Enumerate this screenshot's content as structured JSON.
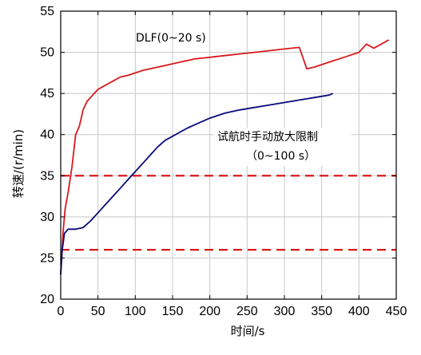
{
  "chart_data": {
    "type": "line",
    "xlabel": "时间/s",
    "ylabel": "转速/(r/min)",
    "xlim": [
      0,
      450
    ],
    "ylim": [
      20,
      55
    ],
    "xticks": [
      "0",
      "50",
      "100",
      "150",
      "200",
      "250",
      "300",
      "350",
      "400",
      "450"
    ],
    "yticks": [
      "20",
      "25",
      "30",
      "35",
      "40",
      "45",
      "50",
      "55"
    ],
    "grid": true,
    "annotations": [
      {
        "text": "DLF(0~20 s)",
        "series": "red"
      },
      {
        "text": "试航时手动放大限制",
        "series": "navy"
      },
      {
        "text": "（0~100 s）",
        "series": "navy"
      }
    ],
    "reference_lines": [
      {
        "y": 35,
        "style": "dashed",
        "color": "#d7191c"
      },
      {
        "y": 26,
        "style": "dashed",
        "color": "#d7191c"
      }
    ],
    "series": [
      {
        "color": "#d7191c",
        "x": [
          0,
          3,
          6,
          10,
          15,
          20,
          25,
          30,
          35,
          40,
          45,
          50,
          60,
          70,
          80,
          90,
          100,
          110,
          120,
          130,
          140,
          150,
          160,
          170,
          180,
          200,
          220,
          240,
          260,
          280,
          300,
          320,
          330,
          340,
          360,
          380,
          400,
          410,
          420,
          440
        ],
        "y": [
          23,
          28,
          31,
          33,
          36,
          40,
          41,
          43,
          44,
          44.5,
          45,
          45.5,
          46,
          46.5,
          47,
          47.2,
          47.5,
          47.8,
          48,
          48.2,
          48.4,
          48.6,
          48.8,
          49,
          49.2,
          49.4,
          49.6,
          49.8,
          50,
          50.2,
          50.4,
          50.6,
          48,
          48.2,
          48.8,
          49.4,
          50,
          51,
          50.5,
          51.5
        ]
      },
      {
        "color": "#0a0a7a",
        "x": [
          0,
          2,
          5,
          10,
          20,
          30,
          40,
          50,
          60,
          70,
          80,
          90,
          100,
          110,
          120,
          130,
          140,
          150,
          160,
          170,
          180,
          190,
          200,
          220,
          240,
          260,
          280,
          300,
          320,
          340,
          360,
          365
        ],
        "y": [
          23,
          26,
          28,
          28.5,
          28.5,
          28.7,
          29.5,
          30.5,
          31.5,
          32.5,
          33.5,
          34.5,
          35.5,
          36.5,
          37.5,
          38.5,
          39.3,
          39.8,
          40.3,
          40.8,
          41.2,
          41.6,
          42,
          42.6,
          43,
          43.3,
          43.6,
          43.9,
          44.2,
          44.5,
          44.8,
          45
        ]
      }
    ]
  }
}
